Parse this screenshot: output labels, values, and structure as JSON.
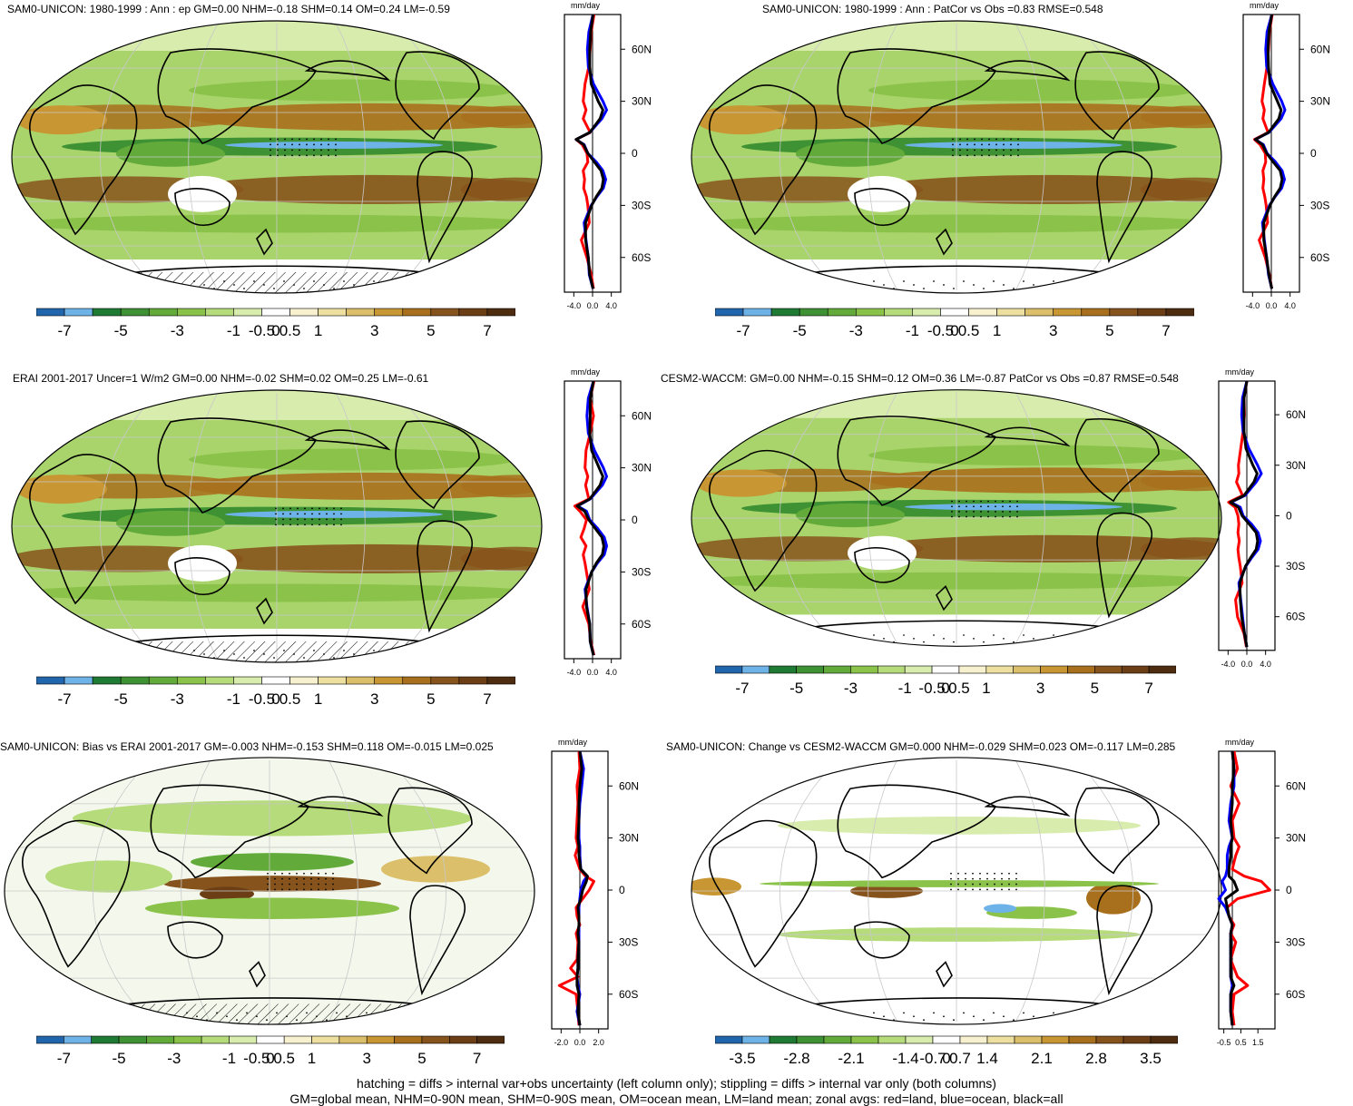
{
  "colors": {
    "scale": [
      "#2166ac",
      "#6eb3e8",
      "#1f7a33",
      "#3e9233",
      "#62ab3a",
      "#8bc34a",
      "#b5db7a",
      "#d7ecad",
      "#ffffff",
      "#f7f1cf",
      "#ecdf9f",
      "#dcbf6a",
      "#c89632",
      "#a8701c",
      "#87531c",
      "#6b3e16",
      "#4d2c0f"
    ],
    "land_line": "#ff0000",
    "ocean_line": "#0000ff",
    "all_line": "#000000"
  },
  "legend_labels_full": [
    "-7",
    "-5",
    "-3",
    "-1",
    "-0.5",
    "0",
    "0.5",
    "1",
    "3",
    "5",
    "7"
  ],
  "legend_labels_change": [
    "-3.5",
    "-2.8",
    "-2.1",
    "-1.4",
    "-0.7",
    "0",
    "0.7",
    "1.4",
    "2.1",
    "2.8",
    "3.5"
  ],
  "zonal_units": "mm/day",
  "lat_labels": [
    "60N",
    "30N",
    "0",
    "30S",
    "60S"
  ],
  "panels": [
    {
      "id": "p1",
      "title": "SAM0-UNICON: 1980-1999 : Ann : ep GM=0.00 NHM=-0.18 SHM=0.14 OM=0.24 LM=-0.59",
      "xticks": [
        "-4.0",
        "0.0",
        "4.0"
      ],
      "hatch": true
    },
    {
      "id": "p2",
      "title": "SAM0-UNICON: 1980-1999 : Ann : PatCor vs Obs =0.83 RMSE=0.548",
      "xticks": [
        "-4.0",
        "0.0",
        "4.0"
      ],
      "hatch": false
    },
    {
      "id": "p3",
      "title": "ERAI 2001-2017 Uncer=1 W/m2 GM=0.00 NHM=-0.02 SHM=0.02 OM=0.25 LM=-0.61",
      "xticks": [
        "-4.0",
        "0.0",
        "4.0"
      ],
      "hatch": true
    },
    {
      "id": "p4",
      "title": "CESM2-WACCM: GM=0.00 NHM=-0.15 SHM=0.12 OM=0.36 LM=-0.87 PatCor vs Obs =0.87 RMSE=0.548",
      "xticks": [
        "-4.0",
        "0.0",
        "4.0"
      ],
      "hatch": false
    },
    {
      "id": "p5",
      "title": "SAM0-UNICON: Bias vs ERAI 2001-2017 GM=-0.003 NHM=-0.153 SHM=0.118 OM=-0.015 LM=0.025",
      "xticks": [
        "-2.0",
        "0.0",
        "2.0"
      ],
      "hatch": true
    },
    {
      "id": "p6",
      "title": "SAM0-UNICON: Change vs CESM2-WACCM GM=0.000 NHM=-0.029 SHM=0.023 OM=-0.117 LM=0.285",
      "xticks": [
        "-0.5",
        "0.5",
        "1.5"
      ],
      "hatch": false
    }
  ],
  "footer": {
    "line1": "hatching = diffs > internal var+obs uncertainty (left column only); stippling = diffs > internal var only (both columns)",
    "line2": "GM=global mean, NHM=0-90N mean, SHM=0-90S mean, OM=ocean mean, LM=land mean; zonal avgs: red=land, blue=ocean, black=all"
  },
  "chart_data": [
    {
      "type": "line",
      "title": "SAM0-UNICON: 1980-1999 : Ann : ep GM=0.00 NHM=-0.18 SHM=0.14 OM=0.24 LM=-0.59",
      "xlabel": "mm/day",
      "xlim": [
        -6,
        6
      ],
      "lat": [
        80,
        70,
        60,
        50,
        40,
        30,
        25,
        20,
        12,
        8,
        5,
        0,
        -5,
        -10,
        -15,
        -20,
        -25,
        -30,
        -40,
        -50,
        -60,
        -70,
        -78
      ],
      "series": [
        {
          "name": "land",
          "values": [
            0.3,
            -0.3,
            -0.5,
            -0.8,
            -1.6,
            -2.0,
            -1.4,
            -2.0,
            -0.5,
            -3.5,
            -2.2,
            -1.2,
            -1.0,
            -2.0,
            -1.7,
            -1.9,
            -1.3,
            -1.0,
            -0.7,
            -2.4,
            -1.2,
            -0.3,
            0.2
          ]
        },
        {
          "name": "ocean",
          "values": [
            0.1,
            -0.8,
            -1.1,
            -0.9,
            0.2,
            2.2,
            3.0,
            2.0,
            -0.6,
            -3.5,
            -1.8,
            -1.0,
            0.8,
            2.2,
            2.8,
            2.3,
            0.9,
            -0.3,
            -1.8,
            -1.4,
            -0.9,
            -0.7,
            0.1
          ]
        },
        {
          "name": "all",
          "values": [
            0.1,
            -0.4,
            -0.6,
            -0.6,
            -0.3,
            1.2,
            2.2,
            1.6,
            -0.6,
            -3.5,
            -1.9,
            -1.0,
            0.4,
            1.8,
            2.3,
            2.0,
            0.8,
            -0.2,
            -1.5,
            -1.5,
            -0.9,
            -0.6,
            0.1
          ]
        }
      ]
    },
    {
      "type": "line",
      "title": "SAM0-UNICON: 1980-1999 : Ann : PatCor vs Obs =0.83 RMSE=0.548",
      "xlabel": "mm/day",
      "xlim": [
        -6,
        6
      ],
      "lat": [
        80,
        70,
        60,
        50,
        40,
        30,
        25,
        20,
        12,
        8,
        5,
        0,
        -5,
        -10,
        -15,
        -20,
        -25,
        -30,
        -40,
        -50,
        -60,
        -70,
        -78
      ],
      "series": [
        {
          "name": "land",
          "values": [
            0.2,
            -0.4,
            -0.6,
            -0.9,
            -1.5,
            -2.0,
            -1.5,
            -1.8,
            -0.7,
            -3.6,
            -2.4,
            -1.3,
            -1.2,
            -1.8,
            -1.6,
            -1.8,
            -1.4,
            -1.1,
            -0.8,
            -2.6,
            -1.3,
            -0.4,
            0.1
          ]
        },
        {
          "name": "ocean",
          "values": [
            0.1,
            -0.9,
            -1.2,
            -1.0,
            0.3,
            2.2,
            2.9,
            2.1,
            -0.5,
            -3.4,
            -1.7,
            -0.9,
            0.9,
            2.3,
            2.8,
            2.2,
            0.8,
            -0.4,
            -1.9,
            -1.5,
            -1.0,
            -0.6,
            0.1
          ]
        },
        {
          "name": "all",
          "values": [
            0.1,
            -0.5,
            -0.7,
            -0.6,
            -0.3,
            1.3,
            2.1,
            1.6,
            -0.6,
            -3.4,
            -1.9,
            -1.0,
            0.4,
            1.9,
            2.3,
            1.9,
            0.7,
            -0.3,
            -1.6,
            -1.6,
            -1.0,
            -0.5,
            0.1
          ]
        }
      ]
    },
    {
      "type": "line",
      "title": "ERAI 2001-2017 Uncer=1 W/m2 GM=0.00 NHM=-0.02 SHM=0.02 OM=0.25 LM=-0.61",
      "xlabel": "mm/day",
      "xlim": [
        -6,
        6
      ],
      "lat": [
        80,
        70,
        60,
        50,
        40,
        30,
        25,
        20,
        12,
        8,
        5,
        0,
        -5,
        -10,
        -15,
        -20,
        -25,
        -30,
        -40,
        -50,
        -60,
        -70,
        -78
      ],
      "series": [
        {
          "name": "land",
          "values": [
            0.3,
            -0.5,
            0.2,
            -0.5,
            -1.4,
            -1.6,
            -1.0,
            -1.5,
            -0.8,
            -3.8,
            -2.7,
            -1.3,
            -1.8,
            -2.5,
            -1.4,
            -2.0,
            -1.6,
            -1.3,
            -0.7,
            -2.1,
            -0.8,
            -0.4,
            0.3
          ]
        },
        {
          "name": "ocean",
          "values": [
            0.2,
            -0.9,
            -1.2,
            -0.9,
            0.4,
            2.3,
            3.0,
            2.1,
            -0.5,
            -3.2,
            -1.3,
            -0.6,
            1.1,
            2.5,
            3.0,
            2.5,
            1.0,
            -0.2,
            -1.6,
            -1.2,
            -0.6,
            -0.5,
            0.2
          ]
        },
        {
          "name": "all",
          "values": [
            0.2,
            -0.5,
            -0.5,
            -0.6,
            -0.2,
            1.4,
            2.2,
            1.6,
            -0.6,
            -3.3,
            -1.7,
            -0.8,
            0.6,
            2.0,
            2.4,
            2.1,
            0.8,
            -0.2,
            -1.4,
            -1.3,
            -0.6,
            -0.5,
            0.2
          ]
        }
      ]
    },
    {
      "type": "line",
      "title": "CESM2-WACCM: GM=0.00 NHM=-0.15 SHM=0.12 OM=0.36 LM=-0.87 PatCor vs Obs =0.87 RMSE=0.548",
      "xlabel": "mm/day",
      "xlim": [
        -6,
        6
      ],
      "lat": [
        80,
        70,
        60,
        50,
        40,
        30,
        25,
        20,
        12,
        8,
        5,
        0,
        -5,
        -10,
        -15,
        -20,
        -25,
        -30,
        -40,
        -50,
        -60,
        -70,
        -78
      ],
      "series": [
        {
          "name": "land",
          "values": [
            0.0,
            -0.6,
            -0.5,
            -0.8,
            -1.3,
            -1.8,
            -1.7,
            -2.2,
            -0.9,
            -3.9,
            -2.5,
            -1.9,
            -1.7,
            -1.9,
            -1.6,
            -1.9,
            -1.7,
            -1.4,
            -1.0,
            -2.4,
            -2.0,
            -0.6,
            -0.1
          ]
        },
        {
          "name": "ocean",
          "values": [
            0.0,
            -0.9,
            -1.1,
            -0.8,
            0.4,
            2.3,
            3.1,
            2.0,
            -0.4,
            -3.4,
            -1.4,
            -0.8,
            1.0,
            2.4,
            2.9,
            2.4,
            1.0,
            -0.2,
            -1.7,
            -1.3,
            -0.9,
            -0.5,
            0.0
          ]
        },
        {
          "name": "all",
          "values": [
            0.0,
            -0.6,
            -0.6,
            -0.6,
            -0.2,
            1.3,
            2.2,
            1.5,
            -0.6,
            -3.5,
            -1.8,
            -1.0,
            0.5,
            2.0,
            2.3,
            2.0,
            0.8,
            -0.3,
            -1.5,
            -1.4,
            -1.1,
            -0.5,
            0.0
          ]
        }
      ]
    },
    {
      "type": "line",
      "title": "SAM0-UNICON: Bias vs ERAI 2001-2017 GM=-0.003 NHM=-0.153 SHM=0.118 OM=-0.015 LM=0.025",
      "xlabel": "mm/day",
      "xlim": [
        -3,
        3
      ],
      "lat": [
        80,
        70,
        60,
        50,
        40,
        30,
        25,
        20,
        12,
        8,
        5,
        0,
        -5,
        -10,
        -15,
        -20,
        -25,
        -30,
        -40,
        -45,
        -50,
        -55,
        -60,
        -70,
        -78
      ],
      "series": [
        {
          "name": "land",
          "values": [
            -0.1,
            0.0,
            -0.3,
            -0.2,
            -0.3,
            -0.4,
            -0.2,
            -0.5,
            0.0,
            0.6,
            1.5,
            1.0,
            0.3,
            -0.4,
            -0.3,
            0.0,
            -0.4,
            -0.2,
            -0.3,
            -1.0,
            -0.2,
            -2.2,
            -0.4,
            -0.2,
            -0.1
          ]
        },
        {
          "name": "ocean",
          "values": [
            0.0,
            0.4,
            0.2,
            0.0,
            -0.1,
            -0.1,
            0.0,
            0.0,
            0.1,
            0.8,
            0.4,
            0.1,
            0.0,
            -0.1,
            -0.1,
            -0.1,
            -0.1,
            -0.1,
            -0.2,
            -0.2,
            -0.3,
            -0.2,
            0.0,
            -0.3,
            0.0
          ]
        },
        {
          "name": "all",
          "values": [
            0.0,
            0.2,
            0.0,
            -0.1,
            -0.1,
            -0.2,
            -0.1,
            -0.1,
            0.1,
            0.8,
            0.7,
            0.3,
            0.1,
            -0.2,
            -0.1,
            -0.1,
            -0.2,
            -0.1,
            -0.2,
            -0.2,
            -0.3,
            -0.3,
            -0.1,
            -0.2,
            0.0
          ]
        }
      ]
    },
    {
      "type": "line",
      "title": "SAM0-UNICON: Change vs CESM2-WACCM GM=0.000 NHM=-0.029 SHM=0.023 OM=-0.117 LM=0.285",
      "xlabel": "mm/day",
      "xlim": [
        -0.8,
        2.5
      ],
      "lat": [
        80,
        70,
        60,
        50,
        40,
        30,
        25,
        20,
        12,
        8,
        5,
        0,
        -5,
        -10,
        -15,
        -20,
        -25,
        -30,
        -40,
        -50,
        -55,
        -60,
        -70,
        -78
      ],
      "series": [
        {
          "name": "land",
          "values": [
            0.1,
            0.3,
            -0.1,
            0.4,
            0.0,
            0.1,
            0.4,
            0.2,
            0.0,
            0.7,
            1.7,
            2.2,
            0.3,
            -0.3,
            -0.2,
            0.1,
            -0.1,
            0.2,
            -0.1,
            0.3,
            0.9,
            0.1,
            0.0,
            0.1
          ]
        },
        {
          "name": "ocean",
          "values": [
            0.0,
            0.1,
            0.1,
            -0.1,
            -0.2,
            0.0,
            -0.2,
            -0.3,
            -0.3,
            -0.4,
            -0.6,
            -0.4,
            -0.8,
            -0.4,
            -0.2,
            0.0,
            -0.1,
            -0.1,
            -0.1,
            -0.1,
            0.0,
            -0.1,
            -0.1,
            0.0
          ]
        },
        {
          "name": "all",
          "values": [
            0.0,
            0.1,
            0.0,
            0.0,
            -0.1,
            0.0,
            -0.1,
            -0.1,
            -0.2,
            -0.2,
            0.1,
            0.3,
            -0.4,
            -0.3,
            -0.2,
            0.0,
            -0.1,
            -0.1,
            -0.1,
            -0.1,
            0.1,
            -0.1,
            -0.1,
            0.0
          ]
        }
      ]
    }
  ]
}
